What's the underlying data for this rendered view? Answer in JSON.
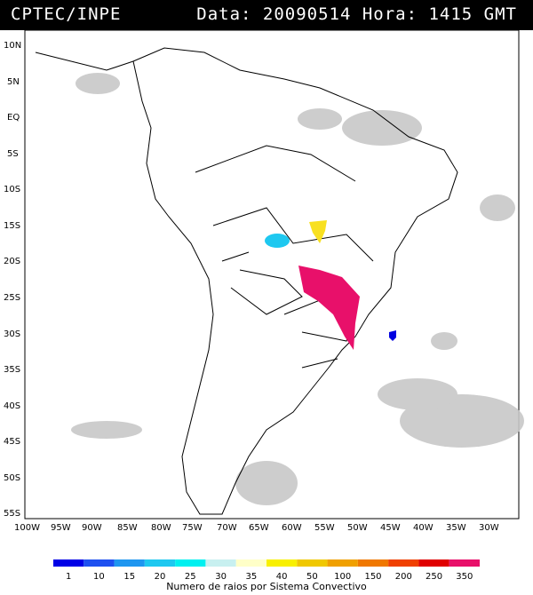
{
  "header": {
    "agency": "CPTEC/INPE",
    "datetime": "Data: 20090514 Hora: 1415 GMT"
  },
  "map": {
    "lat_labels": [
      "10N",
      "5N",
      "EQ",
      "5S",
      "10S",
      "15S",
      "20S",
      "25S",
      "30S",
      "35S",
      "40S",
      "45S",
      "50S",
      "55S"
    ],
    "lon_labels": [
      "100W",
      "95W",
      "90W",
      "85W",
      "80W",
      "75W",
      "70W",
      "65W",
      "60W",
      "55W",
      "50W",
      "45W",
      "40W",
      "35W",
      "30W"
    ],
    "systems": [
      {
        "name": "cyan-system",
        "color": "#1ec8f0",
        "lon": -59.5,
        "lat": -17.2
      },
      {
        "name": "yellow-system",
        "color": "#f8e020",
        "lon": -55.0,
        "lat": -15.8
      },
      {
        "name": "magenta-system",
        "color": "#e8106a",
        "lon": -53.5,
        "lat": -25.5
      },
      {
        "name": "blue-system",
        "color": "#0000e0",
        "lon": -44.5,
        "lat": -30.3
      }
    ]
  },
  "colorbar": {
    "ticks": [
      "1",
      "10",
      "15",
      "20",
      "25",
      "30",
      "35",
      "40",
      "50",
      "100",
      "150",
      "200",
      "250",
      "350"
    ],
    "colors": [
      "#0000e6",
      "#1e50f0",
      "#1e96f0",
      "#1ec8f0",
      "#00f0f0",
      "#c8f0f0",
      "#ffffc8",
      "#f8f000",
      "#f0c800",
      "#f0a000",
      "#f07800",
      "#f04000",
      "#e00000",
      "#e8106a"
    ],
    "title": "Numero de raios por Sistema Convectivo"
  }
}
